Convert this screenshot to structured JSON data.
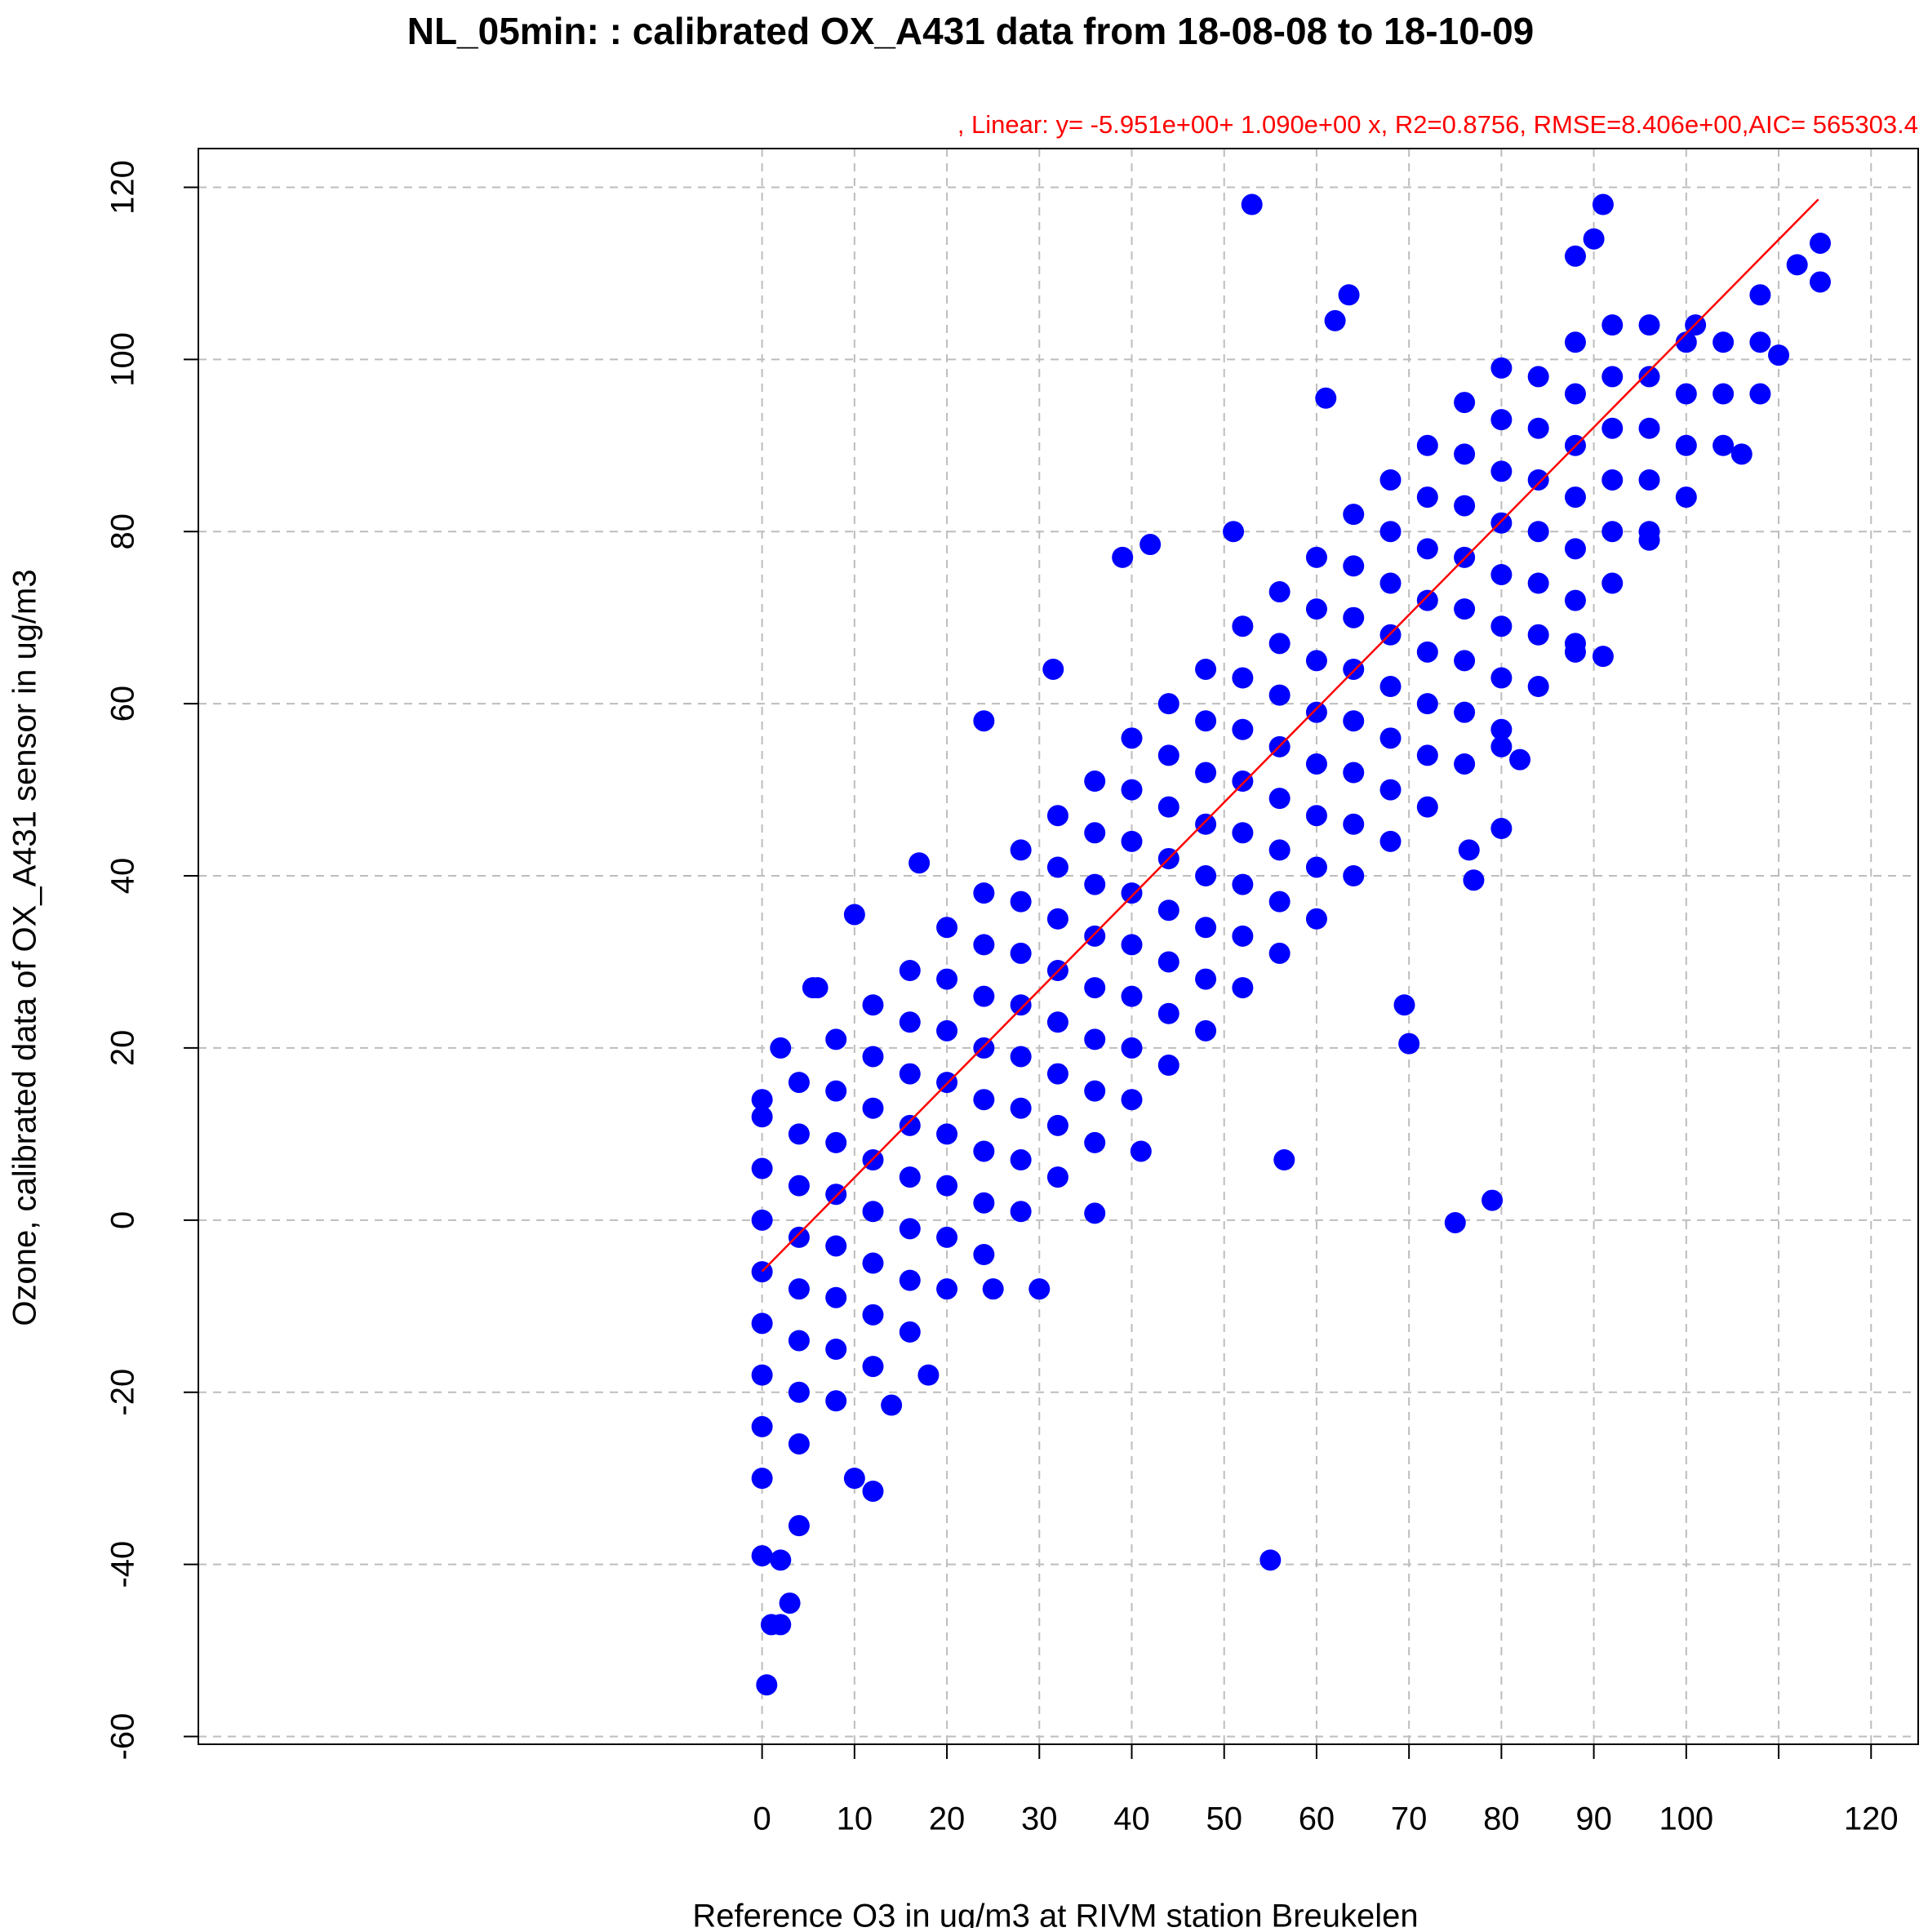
{
  "chart_data": {
    "type": "scatter",
    "title": "NL_05min: : calibrated OX_A431 data from 18-08-08 to 18-10-09",
    "annotation": ", Linear: y= -5.951e+00+ 1.090e+00 x, R2=0.8756, RMSE=8.406e+00,AIC= 565303.4",
    "x_label": "Reference O3 in ug/m3 at RIVM station Breukelen",
    "y_label": "Ozone, calibrated data of OX_A431 sensor in ug/m3",
    "color": "#0000ff",
    "fit_color": "#ff0000",
    "grid": true,
    "xlim": [
      -61,
      125.1
    ],
    "ylim": [
      -60.9,
      124.5
    ],
    "xticks": [
      0,
      10,
      20,
      30,
      40,
      50,
      60,
      70,
      80,
      90,
      100,
      {
        "value": 110,
        "label": null
      },
      120
    ],
    "yticks": [
      -60,
      -40,
      -20,
      0,
      20,
      40,
      60,
      80,
      100,
      120
    ],
    "fit": {
      "x": [
        0,
        114.3
      ],
      "y": [
        -5.951,
        118.6
      ]
    },
    "x": [
      0,
      0,
      0,
      0,
      0,
      0,
      0,
      0,
      4,
      4,
      4,
      4,
      4,
      4,
      4,
      4,
      8,
      8,
      8,
      8,
      8,
      8,
      8,
      8,
      12,
      12,
      12,
      12,
      12,
      12,
      12,
      12,
      16,
      16,
      16,
      16,
      16,
      16,
      16,
      16,
      20,
      20,
      20,
      20,
      20,
      20,
      20,
      20,
      24,
      24,
      24,
      24,
      24,
      24,
      24,
      24,
      28,
      28,
      28,
      28,
      28,
      28,
      28,
      28,
      32,
      32,
      32,
      32,
      32,
      32,
      32,
      32,
      36,
      36,
      36,
      36,
      36,
      36,
      36,
      36,
      40,
      40,
      40,
      40,
      40,
      40,
      40,
      40,
      44,
      44,
      44,
      44,
      44,
      44,
      44,
      44,
      48,
      48,
      48,
      48,
      48,
      48,
      48,
      48,
      52,
      52,
      52,
      52,
      52,
      52,
      52,
      52,
      56,
      56,
      56,
      56,
      56,
      56,
      56,
      56,
      60,
      60,
      60,
      60,
      60,
      60,
      60,
      60,
      64,
      64,
      64,
      64,
      64,
      64,
      64,
      64,
      68,
      68,
      68,
      68,
      68,
      68,
      68,
      68,
      72,
      72,
      72,
      72,
      72,
      72,
      72,
      72,
      76,
      76,
      76,
      76,
      76,
      76,
      76,
      76,
      80,
      80,
      80,
      80,
      80,
      80,
      80,
      80,
      84,
      84,
      84,
      84,
      84,
      84,
      84,
      88,
      88,
      88,
      88,
      88,
      88,
      88,
      92,
      92,
      92,
      92,
      92,
      92,
      96,
      96,
      96,
      96,
      96,
      100,
      100,
      100,
      100,
      104,
      104,
      104,
      108,
      108,
      53,
      91,
      0.5,
      55,
      75,
      79,
      56.5,
      70,
      69.5,
      1,
      2,
      3,
      12,
      10,
      0,
      2,
      4,
      63.5,
      62,
      114.5,
      114.5,
      112,
      106,
      82,
      80,
      80,
      77,
      76.5,
      36,
      30,
      25,
      41,
      10,
      5.5,
      17,
      24,
      31.5,
      39,
      42,
      51,
      61,
      88,
      90,
      101,
      108,
      110,
      96,
      88,
      91,
      0,
      2,
      6,
      14,
      18
    ],
    "values": [
      -30,
      -24,
      -18,
      -12,
      -6,
      0,
      6,
      12,
      -26,
      -20,
      -14,
      -8,
      -2,
      4,
      10,
      16,
      -21,
      -15,
      -9,
      -3,
      3,
      9,
      15,
      21,
      -17,
      -11,
      -5,
      1,
      7,
      13,
      19,
      25,
      -13,
      -7,
      -1,
      5,
      11,
      17,
      23,
      29,
      -8,
      -2,
      4,
      10,
      16,
      22,
      28,
      34,
      -4,
      2,
      8,
      14,
      20,
      26,
      32,
      38,
      1,
      7,
      13,
      19,
      25,
      31,
      37,
      43,
      5,
      11,
      17,
      23,
      29,
      35,
      41,
      47,
      9,
      15,
      21,
      27,
      33,
      39,
      45,
      51,
      14,
      20,
      26,
      32,
      38,
      44,
      50,
      56,
      18,
      24,
      30,
      36,
      42,
      48,
      54,
      60,
      22,
      28,
      34,
      40,
      46,
      52,
      58,
      64,
      27,
      33,
      39,
      45,
      51,
      57,
      63,
      69,
      31,
      37,
      43,
      49,
      55,
      61,
      67,
      73,
      35,
      41,
      47,
      53,
      59,
      65,
      71,
      77,
      40,
      46,
      52,
      58,
      64,
      70,
      76,
      82,
      44,
      50,
      56,
      62,
      68,
      74,
      80,
      86,
      48,
      54,
      60,
      66,
      72,
      78,
      84,
      90,
      53,
      59,
      65,
      71,
      77,
      83,
      89,
      95,
      57,
      63,
      69,
      75,
      81,
      87,
      93,
      99,
      62,
      68,
      74,
      80,
      86,
      92,
      98,
      66,
      72,
      78,
      84,
      90,
      96,
      102,
      74,
      80,
      86,
      92,
      98,
      104,
      80,
      86,
      92,
      98,
      104,
      84,
      90,
      96,
      102,
      90,
      96,
      102,
      96,
      102,
      118,
      118,
      -54,
      -39.5,
      -0.3,
      2.3,
      7,
      20.5,
      25,
      -47,
      -47,
      -44.5,
      -31.5,
      -30,
      -39,
      -39.5,
      -35.5,
      107.5,
      104.5,
      113.5,
      109,
      111,
      89,
      53.5,
      55,
      45.5,
      39.5,
      43,
      0.8,
      -8,
      -8,
      8,
      35.5,
      27,
      41.5,
      58,
      64,
      77,
      78.5,
      80,
      95.5,
      112,
      114,
      104,
      107.5,
      100.5,
      79,
      67,
      65.5,
      14,
      20,
      27,
      -21.5,
      -18
    ]
  }
}
